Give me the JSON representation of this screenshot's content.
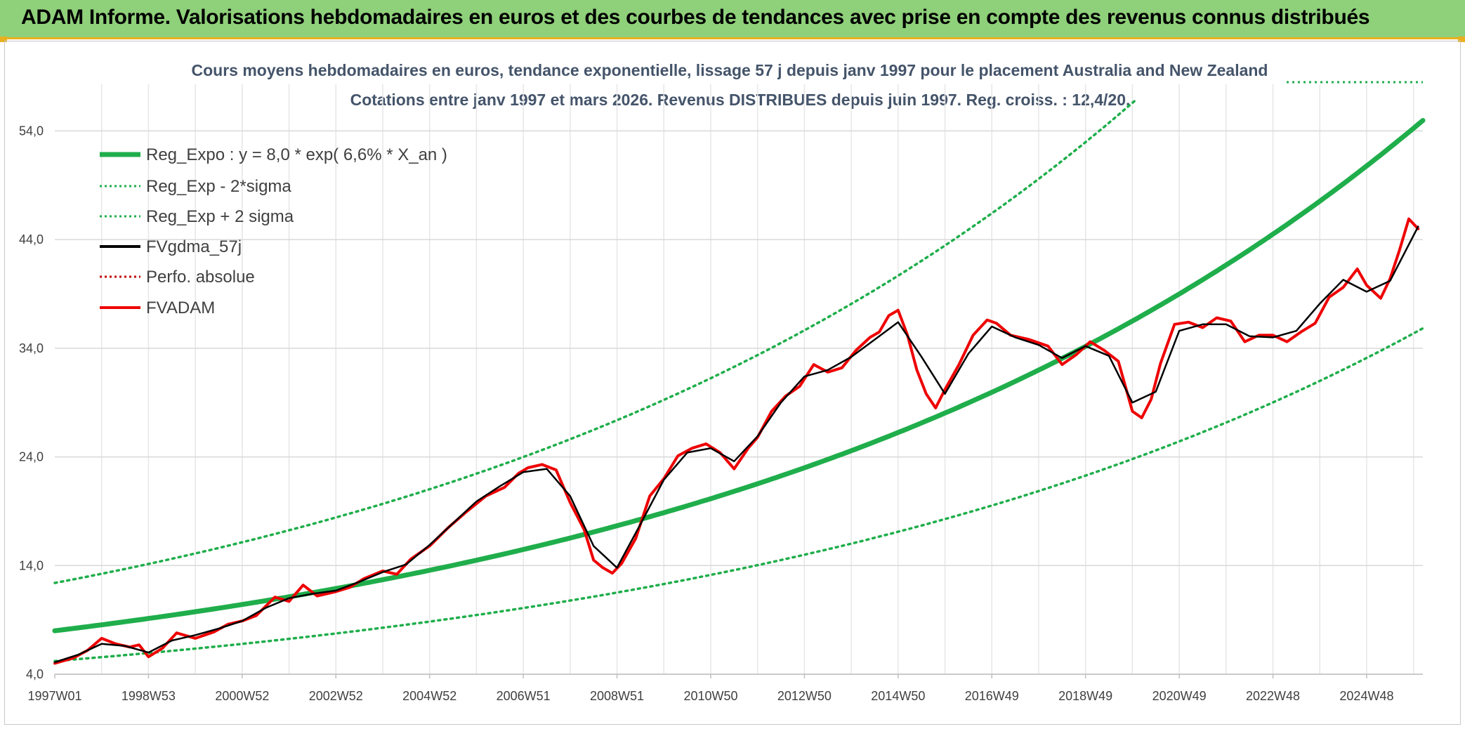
{
  "header": {
    "title": "ADAM Informe. Valorisations hebdomadaires en euros et des courbes de tendances avec prise en compte des revenus connus distribués"
  },
  "colors": {
    "banner": "#8fd07a",
    "accent": "#e8b020",
    "trend": "#1fae4b",
    "fvgdma": "#000000",
    "fvadam": "#ee0000",
    "perfo": "#c00000",
    "subtitle": "#44546a"
  },
  "chart_data": {
    "type": "line",
    "title": "Cours moyens hebdomadaires en euros, tendance exponentielle, lissage 57 j depuis janv 1997 pour le placement Australia and New Zealand",
    "subtitle": "Cotations entre janv 1997 et mars 2026. Revenus DISTRIBUES depuis juin 1997. Reg. croiss. : 12,4/20.",
    "xlabel": "",
    "ylabel": "",
    "x_range": [
      1997.0,
      2026.2
    ],
    "ylim": [
      4.0,
      57.0
    ],
    "y_ticks": [
      "4,0",
      "14,0",
      "24,0",
      "34,0",
      "44,0",
      "54,0"
    ],
    "y_tick_values": [
      4,
      14,
      24,
      34,
      44,
      54
    ],
    "x_ticks": [
      "1997W01",
      "1998W53",
      "2000W52",
      "2002W52",
      "2004W52",
      "2006W51",
      "2008W51",
      "2010W50",
      "2012W50",
      "2014W50",
      "2016W49",
      "2018W49",
      "2020W49",
      "2022W48",
      "2024W48"
    ],
    "x_tick_values": [
      1997.0,
      1999.0,
      2001.0,
      2003.0,
      2005.0,
      2007.0,
      2009.0,
      2011.0,
      2013.0,
      2015.0,
      2017.0,
      2019.0,
      2021.0,
      2023.0,
      2025.0
    ],
    "legend": [
      {
        "name": "Reg_Expo : y = 8,0 * exp( 6,6% *  X_an )",
        "style": "solid-thick",
        "color": "#1fae4b"
      },
      {
        "name": "Reg_Exp - 2*sigma",
        "style": "dotted",
        "color": "#1fae4b"
      },
      {
        "name": "Reg_Exp + 2 sigma",
        "style": "dotted",
        "color": "#1fae4b"
      },
      {
        "name": "FVgdma_57j",
        "style": "solid",
        "color": "#000000"
      },
      {
        "name": "Perfo. absolue",
        "style": "dotted",
        "color": "#c00000"
      },
      {
        "name": "FVADAM",
        "style": "solid",
        "color": "#ee0000"
      }
    ],
    "regression": {
      "a": 8.0,
      "rate": 0.066,
      "lower_factor": 0.652,
      "upper_factor": 1.55
    },
    "series": [
      {
        "name": "FVADAM",
        "x": [
          1997.0,
          1997.4,
          1997.7,
          1998.0,
          1998.3,
          1998.6,
          1998.8,
          1999.0,
          1999.3,
          1999.6,
          2000.0,
          2000.4,
          2000.7,
          2001.0,
          2001.3,
          2001.7,
          2002.0,
          2002.3,
          2002.6,
          2003.0,
          2003.3,
          2003.6,
          2004.0,
          2004.3,
          2004.6,
          2005.0,
          2005.4,
          2005.8,
          2006.2,
          2006.6,
          2006.9,
          2007.1,
          2007.4,
          2007.7,
          2008.0,
          2008.3,
          2008.5,
          2008.7,
          2008.9,
          2009.1,
          2009.4,
          2009.7,
          2010.0,
          2010.3,
          2010.6,
          2010.9,
          2011.2,
          2011.5,
          2011.8,
          2012.0,
          2012.3,
          2012.6,
          2012.9,
          2013.2,
          2013.5,
          2013.8,
          2014.1,
          2014.4,
          2014.6,
          2014.8,
          2015.0,
          2015.2,
          2015.4,
          2015.6,
          2015.8,
          2016.0,
          2016.3,
          2016.6,
          2016.9,
          2017.1,
          2017.4,
          2017.8,
          2018.2,
          2018.5,
          2018.8,
          2019.1,
          2019.4,
          2019.7,
          2020.0,
          2020.2,
          2020.4,
          2020.6,
          2020.9,
          2021.2,
          2021.5,
          2021.8,
          2022.1,
          2022.4,
          2022.7,
          2023.0,
          2023.3,
          2023.6,
          2023.9,
          2024.2,
          2024.5,
          2024.8,
          2025.0,
          2025.3,
          2025.5,
          2025.7,
          2025.9,
          2026.1
        ],
        "y": [
          5.0,
          5.5,
          6.2,
          7.3,
          6.8,
          6.5,
          6.7,
          5.6,
          6.4,
          7.8,
          7.3,
          7.9,
          8.6,
          8.9,
          9.4,
          11.1,
          10.7,
          12.2,
          11.2,
          11.6,
          12.0,
          12.8,
          13.5,
          13.2,
          14.6,
          15.8,
          17.5,
          19.0,
          20.4,
          21.2,
          22.5,
          23.0,
          23.3,
          22.8,
          19.8,
          17.3,
          14.5,
          13.8,
          13.3,
          14.2,
          16.5,
          20.4,
          22.0,
          24.1,
          24.8,
          25.2,
          24.4,
          22.9,
          24.8,
          25.8,
          28.2,
          29.6,
          30.5,
          32.5,
          31.8,
          32.2,
          33.8,
          35.0,
          35.5,
          37.0,
          37.5,
          35.2,
          32.0,
          29.8,
          28.5,
          30.2,
          32.5,
          35.2,
          36.6,
          36.3,
          35.2,
          34.8,
          34.2,
          32.5,
          33.4,
          34.6,
          33.8,
          32.8,
          28.2,
          27.6,
          29.3,
          32.6,
          36.2,
          36.4,
          35.9,
          36.8,
          36.5,
          34.6,
          35.2,
          35.2,
          34.6,
          35.5,
          36.3,
          38.7,
          39.6,
          41.3,
          39.8,
          38.6,
          40.4,
          43.0,
          45.9,
          45.0
        ]
      },
      {
        "name": "FVgdma_57j",
        "x": [
          1997.0,
          1997.5,
          1998.0,
          1998.5,
          1999.0,
          1999.5,
          2000.0,
          2000.5,
          2001.0,
          2001.5,
          2002.0,
          2002.5,
          2003.0,
          2003.5,
          2004.0,
          2004.5,
          2005.0,
          2005.5,
          2006.0,
          2006.5,
          2007.0,
          2007.5,
          2008.0,
          2008.5,
          2009.0,
          2009.5,
          2010.0,
          2010.5,
          2011.0,
          2011.5,
          2012.0,
          2012.5,
          2013.0,
          2013.5,
          2014.0,
          2014.5,
          2015.0,
          2015.5,
          2016.0,
          2016.5,
          2017.0,
          2017.5,
          2018.0,
          2018.5,
          2019.0,
          2019.5,
          2020.0,
          2020.5,
          2021.0,
          2021.5,
          2022.0,
          2022.5,
          2023.0,
          2023.5,
          2024.0,
          2024.5,
          2025.0,
          2025.5,
          2026.1
        ],
        "y": [
          5.1,
          5.8,
          6.8,
          6.6,
          6.0,
          7.1,
          7.6,
          8.2,
          8.9,
          10.1,
          11.0,
          11.4,
          11.7,
          12.5,
          13.4,
          14.1,
          15.9,
          17.9,
          19.9,
          21.3,
          22.6,
          22.9,
          20.4,
          15.8,
          13.8,
          17.8,
          21.9,
          24.4,
          24.8,
          23.6,
          25.9,
          29.0,
          31.4,
          32.0,
          33.2,
          34.8,
          36.4,
          33.2,
          29.8,
          33.5,
          36.0,
          35.0,
          34.3,
          33.1,
          34.2,
          33.3,
          29.0,
          30.0,
          35.6,
          36.2,
          36.2,
          35.1,
          35.0,
          35.6,
          38.1,
          40.3,
          39.2,
          40.2,
          45.2
        ]
      }
    ]
  }
}
